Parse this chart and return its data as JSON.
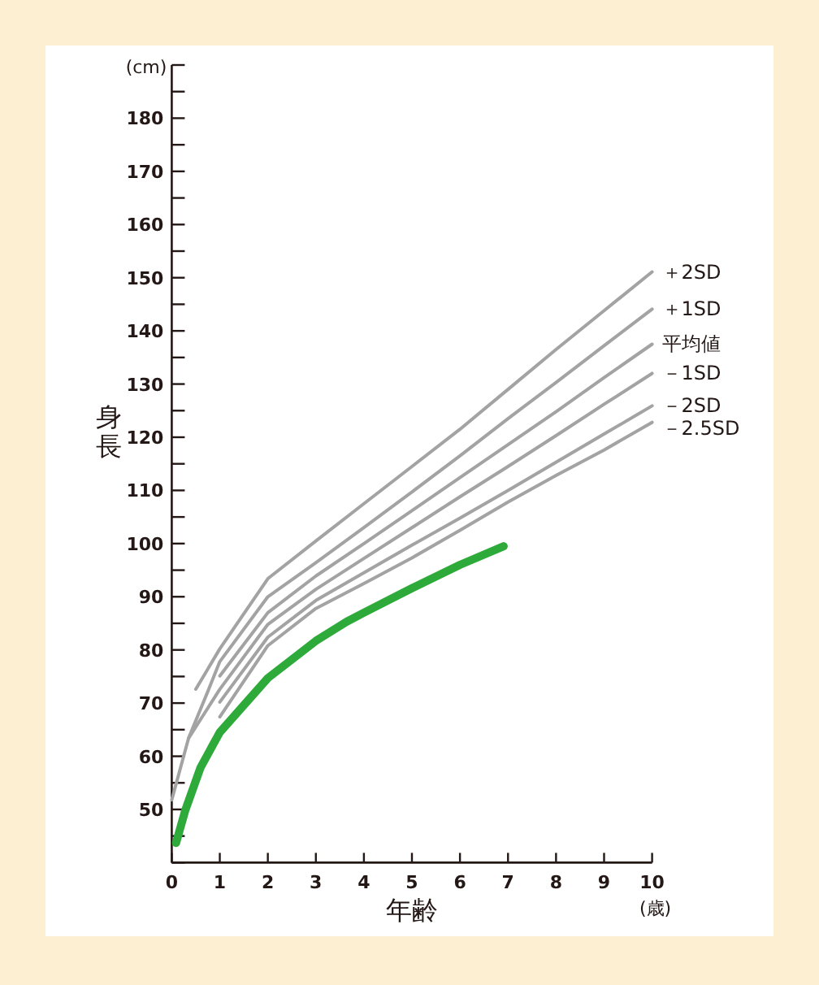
{
  "chart_data": {
    "type": "line",
    "xlabel": "年齢",
    "ylabel": "身長",
    "annotations": [
      "(cm)",
      "(歳)"
    ],
    "xlim": [
      0,
      10
    ],
    "ylim": [
      40,
      190
    ],
    "xticks": [
      0,
      1,
      2,
      3,
      4,
      5,
      6,
      7,
      8,
      9,
      10
    ],
    "yticks": [
      {
        "value": 40,
        "label": null
      },
      {
        "value": 45,
        "label": null
      },
      50,
      {
        "value": 55,
        "label": null
      },
      60,
      {
        "value": 65,
        "label": null
      },
      70,
      {
        "value": 75,
        "label": null
      },
      80,
      {
        "value": 85,
        "label": null
      },
      90,
      {
        "value": 95,
        "label": null
      },
      100,
      {
        "value": 105,
        "label": null
      },
      110,
      {
        "value": 115,
        "label": null
      },
      120,
      {
        "value": 125,
        "label": null
      },
      130,
      {
        "value": 135,
        "label": null
      },
      140,
      {
        "value": 145,
        "label": null
      },
      150,
      {
        "value": 155,
        "label": null
      },
      160,
      {
        "value": 165,
        "label": null
      },
      170,
      {
        "value": 175,
        "label": null
      },
      180,
      {
        "value": 185,
        "label": null
      },
      {
        "value": 190,
        "label": null
      }
    ],
    "series": [
      {
        "name": "＋2SD",
        "color": "#a3a3a3",
        "x": [
          0.5,
          1,
          2,
          3,
          4,
          5,
          6,
          7,
          8,
          9,
          10
        ],
        "values": [
          72.6,
          80.2,
          93.4,
          100.5,
          107.5,
          114.5,
          121.5,
          129,
          136.5,
          143.8,
          151.1
        ]
      },
      {
        "name": "＋1SD",
        "color": "#a3a3a3",
        "x": [
          0,
          0.35,
          0.77,
          1,
          2,
          3,
          4,
          5,
          6,
          7,
          8,
          9,
          10
        ],
        "values": [
          51.8,
          63.4,
          72.6,
          77.8,
          90,
          96.4,
          103,
          109.7,
          116.5,
          123.5,
          130.3,
          137.2,
          144.1
        ]
      },
      {
        "name": "平均値",
        "color": "#a3a3a3",
        "x": [
          1,
          2,
          3,
          4,
          5,
          6,
          7,
          8,
          9,
          10
        ],
        "values": [
          75.1,
          87,
          93.9,
          100,
          106.2,
          112.4,
          118.6,
          124.8,
          131.2,
          137.5
        ]
      },
      {
        "name": "－1SD",
        "color": "#a3a3a3",
        "x": [
          0.35,
          1,
          2,
          3,
          4,
          5,
          6,
          7,
          8,
          9,
          10
        ],
        "values": [
          63.4,
          72.6,
          84.8,
          91.4,
          97.2,
          103,
          108.8,
          114.5,
          120.3,
          126.2,
          132
        ]
      },
      {
        "name": "－2SD",
        "color": "#a3a3a3",
        "x": [
          1,
          2,
          3,
          4,
          5,
          6,
          7,
          8,
          9,
          10
        ],
        "values": [
          70.2,
          82.4,
          89.3,
          94.5,
          99.7,
          104.8,
          110,
          115.3,
          120.6,
          125.9
        ]
      },
      {
        "name": "－2.5SD",
        "color": "#a3a3a3",
        "x": [
          1,
          2,
          3,
          4,
          5,
          6,
          7,
          8,
          9,
          10
        ],
        "values": [
          67.4,
          80.8,
          87.8,
          92.5,
          97.3,
          102.5,
          107.8,
          112.8,
          117.6,
          122.8
        ]
      },
      {
        "color": "#2eaa3a",
        "x": [
          0.09,
          0.28,
          0.6,
          1,
          2,
          3,
          3.64,
          4,
          5,
          6,
          6.91
        ],
        "values": [
          43.7,
          49.8,
          57.9,
          64.5,
          74.7,
          81.7,
          85.3,
          87,
          91.6,
          96,
          99.5
        ]
      }
    ]
  }
}
